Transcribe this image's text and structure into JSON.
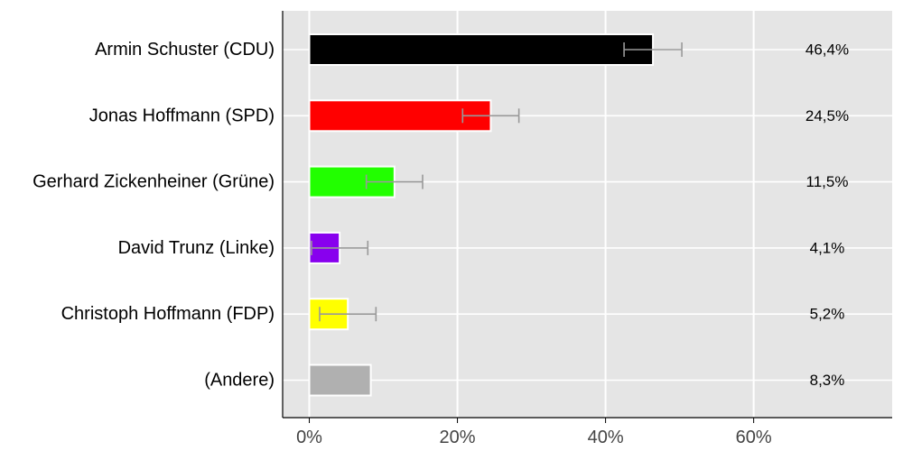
{
  "chart_data": {
    "type": "bar",
    "orientation": "horizontal",
    "title": "",
    "xlabel": "",
    "ylabel": "",
    "categories": [
      "Armin Schuster (CDU)",
      "Jonas Hoffmann (SPD)",
      "Gerhard Zickenheiner (Grüne)",
      "David Trunz (Linke)",
      "Christoph Hoffmann (FDP)",
      "(Andere)"
    ],
    "values": [
      46.4,
      24.5,
      11.5,
      4.1,
      5.2,
      8.3
    ],
    "value_labels": [
      "46,4%",
      "24,5%",
      "11,5%",
      "4,1%",
      "5,2%",
      "8,3%"
    ],
    "error_bars": [
      [
        42.5,
        50.3
      ],
      [
        20.7,
        28.3
      ],
      [
        7.7,
        15.3
      ],
      [
        0.3,
        7.9
      ],
      [
        1.4,
        9.0
      ],
      null
    ],
    "colors": [
      "#000000",
      "#ff0000",
      "#22ff00",
      "#8800ee",
      "#ffff00",
      "#b0b0b0"
    ],
    "xlim": [
      -3.6,
      78.7
    ],
    "xticks": [
      0,
      20,
      40,
      60
    ],
    "xtick_labels": [
      "0%",
      "20%",
      "40%",
      "60%"
    ],
    "grid": true,
    "legend": "none"
  }
}
